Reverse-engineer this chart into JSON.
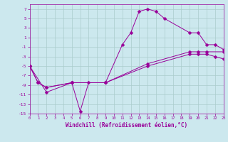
{
  "xlabel": "Windchill (Refroidissement éolien,°C)",
  "background_color": "#cce8ee",
  "grid_color": "#aacccc",
  "line_color": "#990099",
  "xlim": [
    0,
    23
  ],
  "ylim": [
    -15,
    8
  ],
  "xticks": [
    0,
    1,
    2,
    3,
    4,
    5,
    6,
    7,
    8,
    9,
    10,
    11,
    12,
    13,
    14,
    15,
    16,
    17,
    18,
    19,
    20,
    21,
    22,
    23
  ],
  "yticks": [
    -15,
    -13,
    -11,
    -9,
    -7,
    -5,
    -3,
    -1,
    1,
    3,
    5,
    7
  ],
  "series": [
    {
      "x": [
        0,
        2,
        5,
        6,
        7,
        9,
        11,
        12,
        13,
        14,
        15,
        16,
        19,
        20,
        21,
        22,
        23
      ],
      "y": [
        -5,
        -10.5,
        -8.5,
        -14.5,
        -8.5,
        -8.5,
        -0.5,
        2,
        6.5,
        7,
        6.5,
        5,
        2,
        2,
        -0.5,
        -0.5,
        -1.5
      ]
    },
    {
      "x": [
        0,
        1,
        2,
        5,
        9,
        14,
        19,
        20,
        21,
        23
      ],
      "y": [
        -5,
        -8.5,
        -9.5,
        -8.5,
        -8.5,
        -4.5,
        -2,
        -2,
        -2,
        -2
      ]
    },
    {
      "x": [
        0,
        1,
        2,
        5,
        9,
        14,
        19,
        20,
        21,
        22,
        23
      ],
      "y": [
        -5,
        -8.5,
        -9.5,
        -8.5,
        -8.5,
        -5,
        -2.5,
        -2.5,
        -2.5,
        -3,
        -3.5
      ]
    }
  ]
}
